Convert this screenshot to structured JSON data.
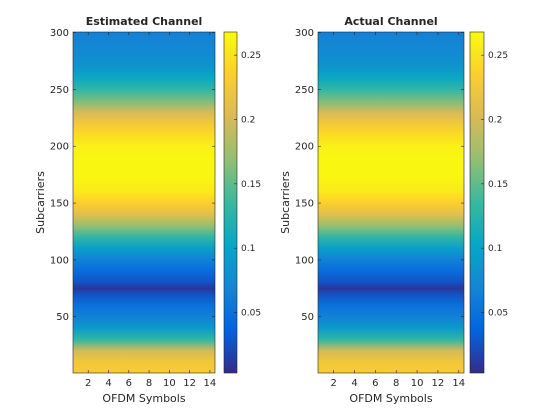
{
  "figure": {
    "colormap": "parula",
    "colormap_stops": [
      "#352a87",
      "#0363e1",
      "#1485d4",
      "#06a7c6",
      "#38b99e",
      "#92bf73",
      "#d9ba56",
      "#fcce2e",
      "#f9fb0e"
    ]
  },
  "chart_data": [
    {
      "type": "heatmap",
      "title": "Estimated Channel",
      "xlabel": "OFDM Symbols",
      "ylabel": "Subcarriers",
      "x_range": [
        1,
        14
      ],
      "y_range": [
        1,
        300
      ],
      "x_ticks": [
        2,
        4,
        6,
        8,
        10,
        12,
        14
      ],
      "y_ticks": [
        50,
        100,
        150,
        200,
        250,
        300
      ],
      "colorbar": {
        "range": [
          0.003,
          0.268
        ],
        "ticks": [
          0.05,
          0.1,
          0.15,
          0.2,
          0.25
        ],
        "tick_labels": [
          "0.05",
          "0.1",
          "0.15",
          "0.2",
          "0.25"
        ]
      },
      "profile_note": "magnitude constant across OFDM symbols; varies by subcarrier",
      "subcarriers": [
        1,
        10,
        20,
        30,
        40,
        50,
        60,
        70,
        75,
        80,
        90,
        100,
        110,
        120,
        130,
        140,
        150,
        160,
        170,
        180,
        190,
        200,
        210,
        220,
        230,
        240,
        250,
        260,
        270,
        280,
        290,
        300
      ],
      "magnitude": [
        0.23,
        0.225,
        0.2,
        0.13,
        0.09,
        0.065,
        0.05,
        0.025,
        0.01,
        0.025,
        0.045,
        0.065,
        0.095,
        0.13,
        0.17,
        0.21,
        0.235,
        0.255,
        0.262,
        0.265,
        0.265,
        0.26,
        0.245,
        0.225,
        0.2,
        0.16,
        0.13,
        0.105,
        0.085,
        0.075,
        0.07,
        0.065
      ]
    },
    {
      "type": "heatmap",
      "title": "Actual Channel",
      "xlabel": "OFDM Symbols",
      "ylabel": "Subcarriers",
      "x_range": [
        1,
        14
      ],
      "y_range": [
        1,
        300
      ],
      "x_ticks": [
        2,
        4,
        6,
        8,
        10,
        12,
        14
      ],
      "y_ticks": [
        50,
        100,
        150,
        200,
        250,
        300
      ],
      "colorbar": {
        "range": [
          0.003,
          0.268
        ],
        "ticks": [
          0.05,
          0.1,
          0.15,
          0.2,
          0.25
        ],
        "tick_labels": [
          "0.05",
          "0.1",
          "0.15",
          "0.2",
          "0.25"
        ]
      },
      "profile_note": "magnitude constant across OFDM symbols; varies by subcarrier",
      "subcarriers": [
        1,
        10,
        20,
        30,
        40,
        50,
        60,
        70,
        75,
        80,
        90,
        100,
        110,
        120,
        130,
        140,
        150,
        160,
        170,
        180,
        190,
        200,
        210,
        220,
        230,
        240,
        250,
        260,
        270,
        280,
        290,
        300
      ],
      "magnitude": [
        0.23,
        0.225,
        0.2,
        0.13,
        0.09,
        0.065,
        0.05,
        0.025,
        0.01,
        0.025,
        0.045,
        0.065,
        0.095,
        0.13,
        0.17,
        0.21,
        0.235,
        0.255,
        0.262,
        0.265,
        0.265,
        0.26,
        0.245,
        0.225,
        0.2,
        0.16,
        0.13,
        0.105,
        0.085,
        0.075,
        0.07,
        0.065
      ]
    }
  ]
}
